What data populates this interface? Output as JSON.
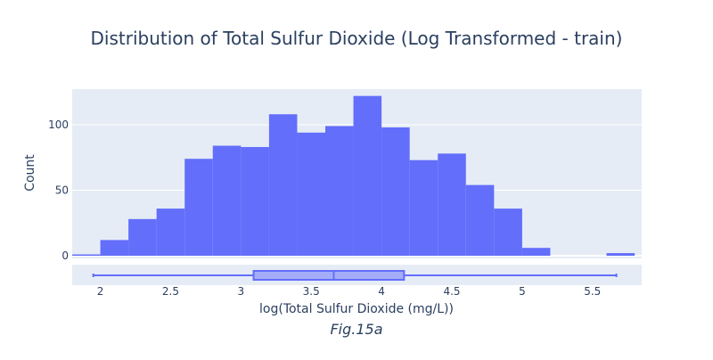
{
  "chart_data": {
    "type": "histogram",
    "title": "Distribution of Total Sulfur Dioxide (Log Transformed - train)",
    "xlabel": "log(Total Sulfur Dioxide (mg/L))",
    "ylabel": "Count",
    "caption": "Fig.15a",
    "xlim": [
      1.8,
      5.85
    ],
    "ylim": [
      0,
      130
    ],
    "bin_width": 0.2,
    "x_ticks": [
      2,
      2.5,
      3,
      3.5,
      4,
      4.5,
      5,
      5.5
    ],
    "x_tick_labels": [
      "2",
      "2.5",
      "3",
      "3.5",
      "4",
      "4.5",
      "5",
      "5.5"
    ],
    "y_ticks": [
      0,
      50,
      100
    ],
    "y_tick_labels": [
      "0",
      "50",
      "100"
    ],
    "bins": [
      {
        "x0": 1.8,
        "x1": 2.0,
        "count": 1
      },
      {
        "x0": 2.0,
        "x1": 2.2,
        "count": 12
      },
      {
        "x0": 2.2,
        "x1": 2.4,
        "count": 28
      },
      {
        "x0": 2.4,
        "x1": 2.6,
        "count": 36
      },
      {
        "x0": 2.6,
        "x1": 2.8,
        "count": 74
      },
      {
        "x0": 2.8,
        "x1": 3.0,
        "count": 84
      },
      {
        "x0": 3.0,
        "x1": 3.2,
        "count": 83
      },
      {
        "x0": 3.2,
        "x1": 3.4,
        "count": 108
      },
      {
        "x0": 3.4,
        "x1": 3.6,
        "count": 94
      },
      {
        "x0": 3.6,
        "x1": 3.8,
        "count": 99
      },
      {
        "x0": 3.8,
        "x1": 4.0,
        "count": 122
      },
      {
        "x0": 4.0,
        "x1": 4.2,
        "count": 98
      },
      {
        "x0": 4.2,
        "x1": 4.4,
        "count": 73
      },
      {
        "x0": 4.4,
        "x1": 4.6,
        "count": 78
      },
      {
        "x0": 4.6,
        "x1": 4.8,
        "count": 54
      },
      {
        "x0": 4.8,
        "x1": 5.0,
        "count": 36
      },
      {
        "x0": 5.0,
        "x1": 5.2,
        "count": 6
      },
      {
        "x0": 5.2,
        "x1": 5.4,
        "count": 0
      },
      {
        "x0": 5.4,
        "x1": 5.6,
        "count": 0
      },
      {
        "x0": 5.6,
        "x1": 5.8,
        "count": 2
      }
    ],
    "box": {
      "min": 1.95,
      "q1": 3.09,
      "median": 3.66,
      "q3": 4.16,
      "max": 5.67
    },
    "grid": true,
    "legend": "none",
    "colors": {
      "bar": "#636efa",
      "plot_bg": "#e5ecf6",
      "grid": "#ffffff",
      "text": "#2a3f5f"
    }
  }
}
